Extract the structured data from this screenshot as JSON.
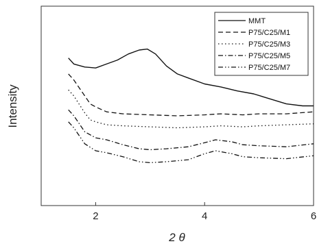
{
  "chart_data": {
    "type": "line",
    "title": "",
    "xlabel": "2 θ",
    "ylabel": "Intensity",
    "xlim": [
      1,
      6
    ],
    "ylim": [
      0,
      10
    ],
    "x_ticks": [
      2,
      4,
      6
    ],
    "x_tick_labels": [
      "2",
      "4",
      "6"
    ],
    "grid": false,
    "legend_position": "top-right",
    "series": [
      {
        "name": "MMT",
        "dash": "solid",
        "points": [
          [
            1.5,
            7.4
          ],
          [
            1.6,
            7.1
          ],
          [
            1.8,
            6.95
          ],
          [
            2.0,
            6.9
          ],
          [
            2.2,
            7.1
          ],
          [
            2.4,
            7.3
          ],
          [
            2.6,
            7.6
          ],
          [
            2.8,
            7.8
          ],
          [
            2.95,
            7.85
          ],
          [
            3.1,
            7.6
          ],
          [
            3.3,
            7.0
          ],
          [
            3.5,
            6.6
          ],
          [
            3.7,
            6.4
          ],
          [
            4.0,
            6.1
          ],
          [
            4.3,
            5.95
          ],
          [
            4.6,
            5.75
          ],
          [
            4.9,
            5.6
          ],
          [
            5.2,
            5.35
          ],
          [
            5.5,
            5.1
          ],
          [
            5.8,
            5.0
          ],
          [
            6.0,
            5.0
          ]
        ]
      },
      {
        "name": "P75/C25/M1",
        "dash": "dashed",
        "points": [
          [
            1.5,
            6.6
          ],
          [
            1.6,
            6.3
          ],
          [
            1.8,
            5.5
          ],
          [
            1.9,
            5.1
          ],
          [
            2.0,
            4.95
          ],
          [
            2.2,
            4.7
          ],
          [
            2.5,
            4.6
          ],
          [
            3.0,
            4.55
          ],
          [
            3.5,
            4.5
          ],
          [
            4.0,
            4.55
          ],
          [
            4.3,
            4.6
          ],
          [
            4.7,
            4.55
          ],
          [
            5.0,
            4.6
          ],
          [
            5.5,
            4.6
          ],
          [
            6.0,
            4.7
          ]
        ]
      },
      {
        "name": "P75/C25/M3",
        "dash": "dotted",
        "points": [
          [
            1.5,
            5.8
          ],
          [
            1.6,
            5.5
          ],
          [
            1.8,
            4.65
          ],
          [
            1.9,
            4.3
          ],
          [
            2.0,
            4.2
          ],
          [
            2.2,
            4.05
          ],
          [
            2.5,
            4.0
          ],
          [
            3.0,
            3.95
          ],
          [
            3.5,
            3.9
          ],
          [
            4.0,
            3.95
          ],
          [
            4.3,
            4.0
          ],
          [
            4.7,
            3.95
          ],
          [
            5.0,
            4.0
          ],
          [
            5.5,
            4.05
          ],
          [
            6.0,
            4.1
          ]
        ]
      },
      {
        "name": "P75/C25/M5",
        "dash": "dashdot",
        "points": [
          [
            1.5,
            4.8
          ],
          [
            1.6,
            4.5
          ],
          [
            1.8,
            3.7
          ],
          [
            2.0,
            3.4
          ],
          [
            2.2,
            3.3
          ],
          [
            2.5,
            3.05
          ],
          [
            2.8,
            2.85
          ],
          [
            3.0,
            2.8
          ],
          [
            3.3,
            2.85
          ],
          [
            3.7,
            2.95
          ],
          [
            4.0,
            3.15
          ],
          [
            4.2,
            3.3
          ],
          [
            4.5,
            3.2
          ],
          [
            4.7,
            3.05
          ],
          [
            5.0,
            3.0
          ],
          [
            5.5,
            2.95
          ],
          [
            6.0,
            3.1
          ]
        ]
      },
      {
        "name": "P75/C25/M7",
        "dash": "dashdotdot",
        "points": [
          [
            1.5,
            4.2
          ],
          [
            1.6,
            3.9
          ],
          [
            1.8,
            3.1
          ],
          [
            2.0,
            2.75
          ],
          [
            2.2,
            2.65
          ],
          [
            2.5,
            2.45
          ],
          [
            2.8,
            2.2
          ],
          [
            3.0,
            2.15
          ],
          [
            3.3,
            2.2
          ],
          [
            3.7,
            2.3
          ],
          [
            4.0,
            2.6
          ],
          [
            4.2,
            2.75
          ],
          [
            4.5,
            2.6
          ],
          [
            4.7,
            2.45
          ],
          [
            5.0,
            2.4
          ],
          [
            5.5,
            2.35
          ],
          [
            6.0,
            2.5
          ]
        ]
      }
    ]
  }
}
